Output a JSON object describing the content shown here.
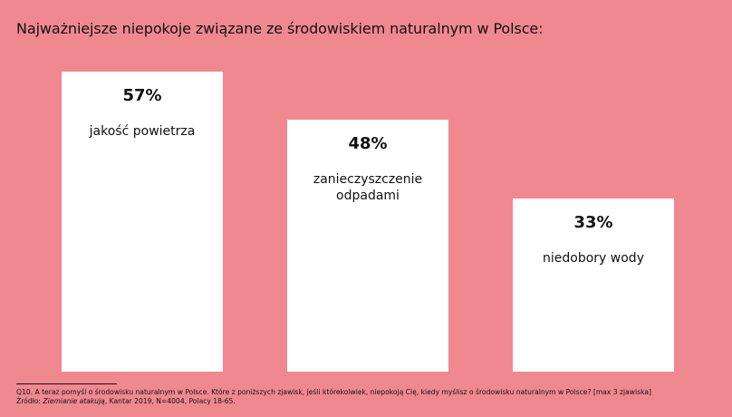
{
  "title": "Najważniejsze niepokoje związane ze środowiskiem naturalnym w Polsce:",
  "chart_data": {
    "type": "bar",
    "categories": [
      "jakość powietrza",
      "zanieczyszczenie\nodpadami",
      "niedobory wody"
    ],
    "values": [
      57,
      48,
      33
    ],
    "value_labels": [
      "57%",
      "48%",
      "33%"
    ],
    "title": "Najważniejsze niepokoje związane ze środowiskiem naturalnym w Polsce:",
    "xlabel": "",
    "ylabel": "",
    "ylim": [
      0,
      100
    ],
    "grid": false,
    "legend": "none",
    "colors": {
      "background": "#f08890",
      "bar": "#ffffff",
      "text": "#111111"
    }
  },
  "footer": {
    "question": "Q10. A teraz pomyśl o środowisku naturalnym w Polsce. Które z poniższych zjawisk, jeśli którekolwiek, niepokoją Cię, kiedy myślisz o środowisku naturalnym w Polsce? [max 3 zjawiska]",
    "source_prefix": "Źródło:",
    "source_title": "Ziemianie atakują",
    "source_rest": ", Kantar 2019, N=4004, Polacy 18-65."
  }
}
